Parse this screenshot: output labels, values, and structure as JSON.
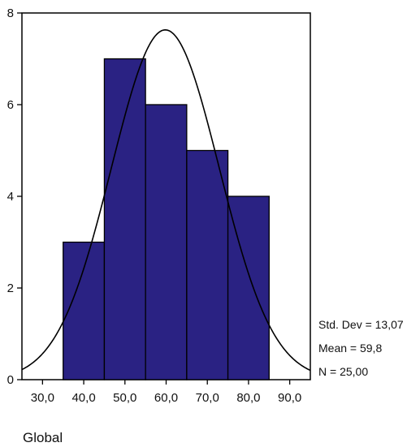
{
  "chart_data": {
    "type": "bar",
    "title": "",
    "xlabel": "Global",
    "ylabel": "",
    "bins": [
      {
        "from": 35,
        "to": 45,
        "count": 3
      },
      {
        "from": 45,
        "to": 55,
        "count": 7
      },
      {
        "from": 55,
        "to": 65,
        "count": 6
      },
      {
        "from": 65,
        "to": 75,
        "count": 5
      },
      {
        "from": 75,
        "to": 85,
        "count": 4
      }
    ],
    "x_ticks": [
      "30,0",
      "40,0",
      "50,0",
      "60,0",
      "70,0",
      "80,0",
      "90,0"
    ],
    "y_ticks": [
      "0",
      "2",
      "4",
      "6",
      "8"
    ],
    "xlim": [
      25,
      95
    ],
    "ylim": [
      0,
      8
    ],
    "normal_curve": {
      "mean": 59.8,
      "std_dev": 13.07,
      "n": 25
    },
    "stats": {
      "std_dev": "Std. Dev = 13,07",
      "mean": "Mean = 59,8",
      "n": "N = 25,00"
    },
    "colors": {
      "bar_fill": "#2a2283",
      "bar_edge": "#000000",
      "curve": "#000000"
    }
  }
}
